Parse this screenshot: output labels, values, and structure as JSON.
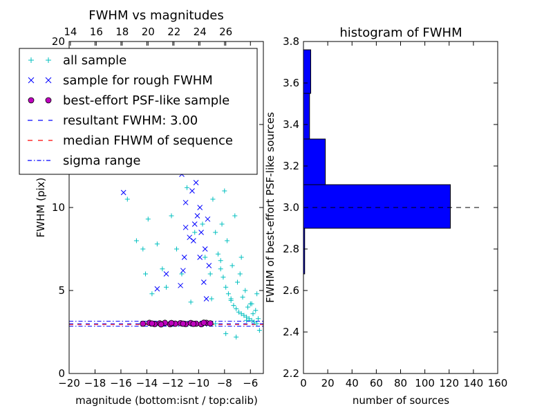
{
  "chart_data": [
    {
      "type": "scatter",
      "title": "FWHM vs magnitudes",
      "xlabel": "magnitude (bottom:isnt / top:calib)",
      "ylabel": "FWHM (pix)",
      "xlim": [
        -20,
        -5
      ],
      "ylim": [
        0,
        20
      ],
      "x_ticks": [
        -20,
        -18,
        -16,
        -14,
        -12,
        -10,
        -8,
        -6
      ],
      "x_tick_labels": [
        "−20",
        "−18",
        "−16",
        "−14",
        "−12",
        "−10",
        "−8",
        "−6"
      ],
      "y_ticks": [
        0,
        5,
        10,
        15,
        20
      ],
      "y_tick_labels": [
        "0",
        "5",
        "10",
        "15",
        "20"
      ],
      "top_axis_ticks": [
        14,
        16,
        18,
        20,
        22,
        24,
        26
      ],
      "top_axis_offset": 33.9,
      "grid": false,
      "legend_position": "top-left",
      "legend": [
        {
          "label": "all sample",
          "marker": "+",
          "color": "#00bfbf"
        },
        {
          "label": "sample for rough FWHM",
          "marker": "x",
          "color": "#0000ff"
        },
        {
          "label": "best-effort PSF-like sample",
          "marker": "o",
          "color": "#bf00bf"
        },
        {
          "label": "resultant FWHM: 3.00",
          "style": "dashed",
          "color": "#0000ff"
        },
        {
          "label": "median FHWM of sequence",
          "style": "dashed",
          "color": "#ff0000"
        },
        {
          "label": "sigma range",
          "style": "dashdot",
          "color": "#0000ff"
        }
      ],
      "reference_lines": {
        "resultant_fwhm": 3.0,
        "median_fwhm": 2.95,
        "sigma_range": [
          2.85,
          3.15
        ]
      },
      "series": [
        {
          "name": "all sample",
          "marker": "+",
          "color": "#00bfbf",
          "x": [
            -15.5,
            -14.8,
            -14.3,
            -14.1,
            -13.9,
            -13.6,
            -13.2,
            -12.8,
            -12.5,
            -12.1,
            -11.7,
            -11.3,
            -10.9,
            -10.6,
            -10.3,
            -10.0,
            -9.7,
            -9.5,
            -9.3,
            -9.1,
            -8.9,
            -8.7,
            -8.5,
            -8.3,
            -8.1,
            -7.9,
            -7.7,
            -7.5,
            -7.3,
            -7.1,
            -6.9,
            -6.7,
            -6.5,
            -6.3,
            -6.1,
            -5.9,
            -5.7,
            -5.5,
            -5.3,
            -8.6,
            -8.2,
            -7.8,
            -7.4,
            -7.0,
            -6.6,
            -6.2,
            -5.8,
            -5.4,
            -8.4,
            -7.6,
            -6.8,
            -6.0,
            -9.2,
            -8.8,
            -8.0,
            -7.2,
            -6.4,
            -5.6,
            -9.0,
            -8.3,
            -7.5,
            -6.7,
            -5.9,
            -7.9,
            -6.3,
            -8.7,
            -7.1,
            -5.5
          ],
          "y": [
            10.5,
            8.0,
            7.5,
            6.0,
            9.3,
            4.8,
            7.8,
            6.3,
            5.2,
            9.5,
            7.5,
            6.0,
            11.2,
            4.3,
            8.5,
            12.5,
            9.0,
            7.0,
            15.5,
            6.0,
            10.5,
            8.5,
            7.2,
            6.3,
            5.8,
            5.2,
            4.8,
            4.4,
            4.1,
            3.9,
            3.7,
            3.6,
            3.5,
            3.4,
            3.3,
            3.2,
            3.1,
            3.0,
            2.6,
            12.5,
            9.0,
            8.0,
            6.5,
            5.5,
            4.6,
            4.0,
            3.6,
            3.3,
            17.5,
            14.0,
            6.0,
            4.2,
            18.5,
            16.0,
            11.0,
            9.5,
            5.0,
            3.8,
            4.5,
            6.8,
            4.5,
            7.0,
            4.2,
            2.4,
            3.2,
            3.0,
            2.2,
            4.8
          ]
        },
        {
          "name": "sample for rough FWHM",
          "marker": "x",
          "color": "#0000ff",
          "x": [
            -15.8,
            -13.2,
            -12.5,
            -11.4,
            -11.1,
            -11.0,
            -10.4,
            -10.2,
            -9.9,
            -9.6,
            -9.3,
            -9.1,
            -11.3,
            -10.8,
            -10.5,
            -10.1,
            -9.8,
            -9.5,
            -9.2,
            -11.2,
            -10.7,
            -10.3,
            -9.9,
            -9.6,
            -9.4,
            -11.0,
            -10.5,
            -10.0,
            -9.7,
            -9.3
          ],
          "y": [
            10.9,
            5.1,
            6.0,
            5.3,
            7.0,
            8.8,
            8.0,
            11.5,
            10.0,
            12.5,
            14.0,
            17.0,
            12.0,
            13.0,
            11.0,
            9.5,
            8.5,
            7.5,
            6.5,
            6.2,
            8.2,
            9.0,
            7.0,
            5.5,
            4.5,
            10.3,
            12.8,
            14.5,
            15.5,
            9.3
          ]
        },
        {
          "name": "best-effort PSF-like sample",
          "marker": "o",
          "color": "#bf00bf",
          "x": [
            -14.3,
            -13.8,
            -13.4,
            -13.0,
            -12.6,
            -12.2,
            -11.8,
            -11.4,
            -11.0,
            -10.6,
            -10.2,
            -9.8,
            -9.4,
            -9.1,
            -13.6,
            -12.9,
            -12.1,
            -11.2,
            -10.4,
            -9.6
          ],
          "y": [
            3.0,
            3.05,
            2.98,
            3.02,
            3.05,
            2.97,
            3.0,
            3.03,
            2.98,
            3.04,
            3.0,
            2.97,
            3.05,
            3.02,
            3.01,
            2.96,
            3.04,
            3.0,
            2.99,
            3.06
          ]
        }
      ]
    },
    {
      "type": "bar",
      "orientation": "horizontal",
      "title": "histogram of FWHM",
      "xlabel": "number of sources",
      "ylabel": "FWHM of best-effort PSF-like sources",
      "xlim": [
        0,
        160
      ],
      "ylim": [
        2.2,
        3.8
      ],
      "x_ticks": [
        0,
        20,
        40,
        60,
        80,
        100,
        120,
        140,
        160
      ],
      "x_tick_labels": [
        "0",
        "20",
        "40",
        "60",
        "80",
        "100",
        "120",
        "140",
        "160"
      ],
      "y_ticks": [
        2.2,
        2.4,
        2.6,
        2.8,
        3.0,
        3.2,
        3.4,
        3.6,
        3.8
      ],
      "y_tick_labels": [
        "2.2",
        "2.4",
        "2.6",
        "2.8",
        "3.0",
        "3.2",
        "3.4",
        "3.6",
        "3.8"
      ],
      "bar_color": "#0000ff",
      "bins": [
        {
          "low": 2.68,
          "high": 2.9,
          "count": 1
        },
        {
          "low": 2.9,
          "high": 3.11,
          "count": 121
        },
        {
          "low": 3.11,
          "high": 3.33,
          "count": 18
        },
        {
          "low": 3.33,
          "high": 3.55,
          "count": 5
        },
        {
          "low": 3.55,
          "high": 3.76,
          "count": 6
        }
      ],
      "reference_line": {
        "y": 3.0,
        "x_range": [
          0,
          145
        ],
        "style": "dashed",
        "color": "#000000"
      }
    }
  ]
}
